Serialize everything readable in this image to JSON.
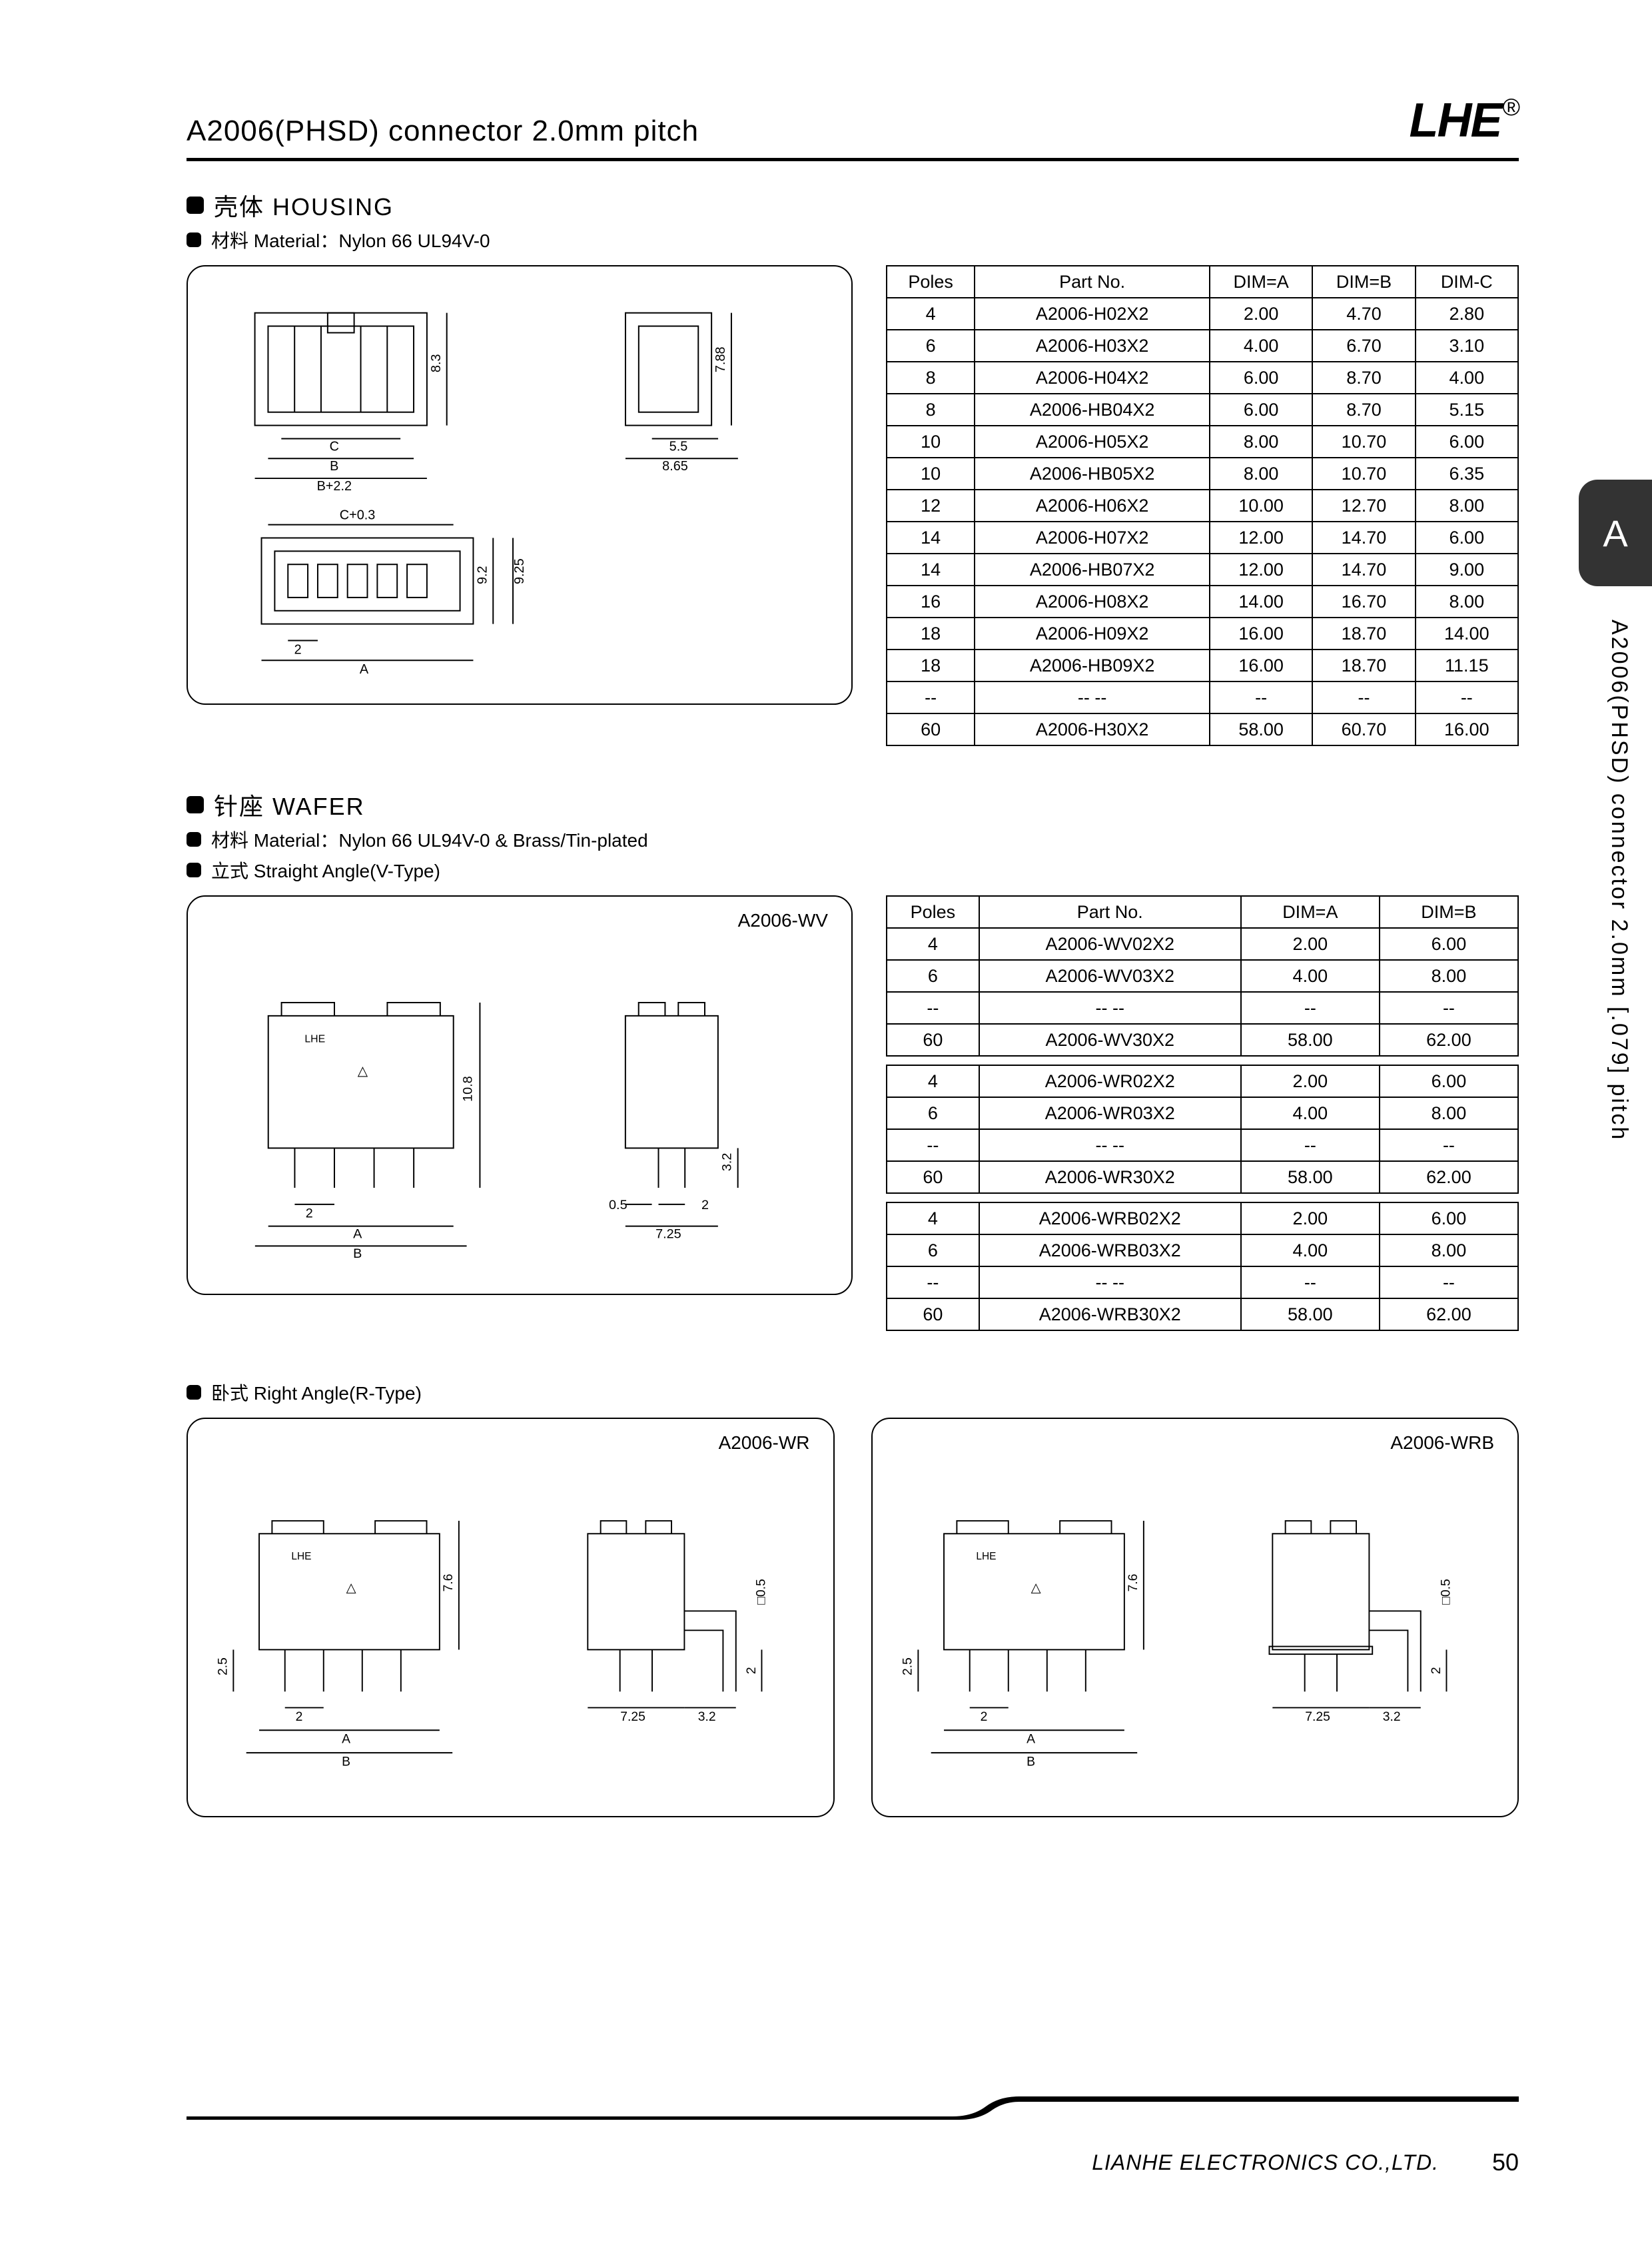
{
  "header": {
    "title": "A2006(PHSD) connector 2.0mm pitch",
    "logo": "LHE",
    "trademark": "®"
  },
  "side_tab": "A",
  "side_text": "A2006(PHSD) connector 2.0mm [.079] pitch",
  "housing": {
    "section_title": "壳体 HOUSING",
    "material_label": "材料 Material：Nylon 66 UL94V-0",
    "table": {
      "headers": [
        "Poles",
        "Part No.",
        "DIM=A",
        "DIM=B",
        "DIM-C"
      ],
      "rows": [
        [
          "4",
          "A2006-H02X2",
          "2.00",
          "4.70",
          "2.80"
        ],
        [
          "6",
          "A2006-H03X2",
          "4.00",
          "6.70",
          "3.10"
        ],
        [
          "8",
          "A2006-H04X2",
          "6.00",
          "8.70",
          "4.00"
        ],
        [
          "8",
          "A2006-HB04X2",
          "6.00",
          "8.70",
          "5.15"
        ],
        [
          "10",
          "A2006-H05X2",
          "8.00",
          "10.70",
          "6.00"
        ],
        [
          "10",
          "A2006-HB05X2",
          "8.00",
          "10.70",
          "6.35"
        ],
        [
          "12",
          "A2006-H06X2",
          "10.00",
          "12.70",
          "8.00"
        ],
        [
          "14",
          "A2006-H07X2",
          "12.00",
          "14.70",
          "6.00"
        ],
        [
          "14",
          "A2006-HB07X2",
          "12.00",
          "14.70",
          "9.00"
        ],
        [
          "16",
          "A2006-H08X2",
          "14.00",
          "16.70",
          "8.00"
        ],
        [
          "18",
          "A2006-H09X2",
          "16.00",
          "18.70",
          "14.00"
        ],
        [
          "18",
          "A2006-HB09X2",
          "16.00",
          "18.70",
          "11.15"
        ],
        [
          "--",
          "-- --",
          "--",
          "--",
          "--"
        ],
        [
          "60",
          "A2006-H30X2",
          "58.00",
          "60.70",
          "16.00"
        ]
      ]
    },
    "dims": {
      "h1": "8.3",
      "h2": "7.88",
      "w1": "5.5",
      "w2": "8.65",
      "labelC": "C",
      "labelB": "B",
      "labelBplus": "B+2.2",
      "labelCplus": "C+0.3",
      "pitch": "2",
      "labelA": "A",
      "h3": "9.2",
      "h4": "9.25"
    }
  },
  "wafer": {
    "section_title": "针座 WAFER",
    "material_label": "材料 Material：Nylon 66 UL94V-0 & Brass/Tin-plated",
    "straight_label": "立式 Straight Angle(V-Type)",
    "right_angle_label": "卧式 Right Angle(R-Type)",
    "diagram_labels": {
      "wv": "A2006-WV",
      "wr": "A2006-WR",
      "wrb": "A2006-WRB"
    },
    "table_headers": [
      "Poles",
      "Part No.",
      "DIM=A",
      "DIM=B"
    ],
    "table_wv": [
      [
        "4",
        "A2006-WV02X2",
        "2.00",
        "6.00"
      ],
      [
        "6",
        "A2006-WV03X2",
        "4.00",
        "8.00"
      ],
      [
        "--",
        "-- --",
        "--",
        "--"
      ],
      [
        "60",
        "A2006-WV30X2",
        "58.00",
        "62.00"
      ]
    ],
    "table_wr": [
      [
        "4",
        "A2006-WR02X2",
        "2.00",
        "6.00"
      ],
      [
        "6",
        "A2006-WR03X2",
        "4.00",
        "8.00"
      ],
      [
        "--",
        "-- --",
        "--",
        "--"
      ],
      [
        "60",
        "A2006-WR30X2",
        "58.00",
        "62.00"
      ]
    ],
    "table_wrb": [
      [
        "4",
        "A2006-WRB02X2",
        "2.00",
        "6.00"
      ],
      [
        "6",
        "A2006-WRB03X2",
        "4.00",
        "8.00"
      ],
      [
        "--",
        "-- --",
        "--",
        "--"
      ],
      [
        "60",
        "A2006-WRB30X2",
        "58.00",
        "62.00"
      ]
    ],
    "dims": {
      "h_wv": "10.8",
      "h_side": "3.2",
      "pin": "0.5",
      "pitch": "2",
      "w_side": "7.25",
      "labelA": "A",
      "labelB": "B",
      "h_wr": "7.6",
      "h_wr_pin": "2.5",
      "w_wr_ext": "3.2",
      "sq": "□0.5",
      "pin2": "2"
    }
  },
  "footer": {
    "company": "LIANHE ELECTRONICS CO.,LTD.",
    "page": "50"
  }
}
